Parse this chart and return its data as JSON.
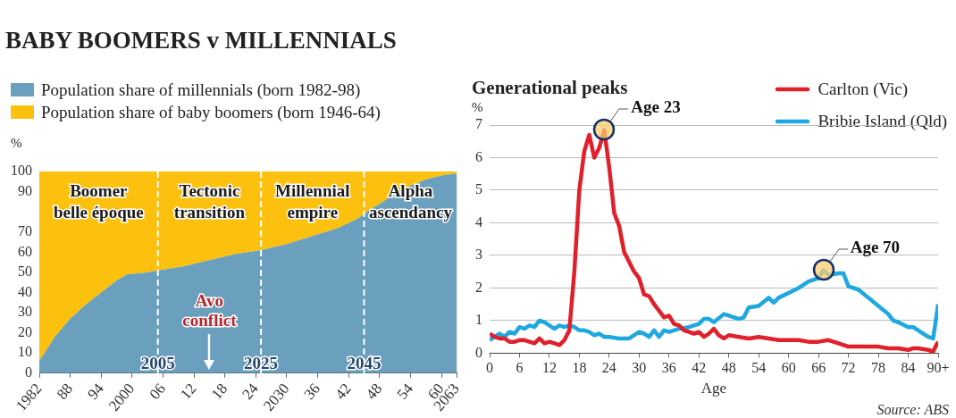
{
  "chart_data": [
    {
      "type": "area",
      "title": "BABY BOOMERS v MILLENNIALS",
      "ylabel": "%",
      "stacked": true,
      "marker": "none",
      "legend": "top left",
      "x": [
        1982,
        1985,
        1988,
        1991,
        1994,
        1997,
        1999,
        2003,
        2005,
        2010,
        2015,
        2020,
        2025,
        2030,
        2035,
        2040,
        2044,
        2046,
        2048,
        2051,
        2054,
        2057,
        2060,
        2063
      ],
      "series": [
        {
          "name": "Population share of millennials (born 1982-98)",
          "color": "#6a9fbd",
          "values": [
            6,
            18,
            27,
            34,
            40,
            46,
            49,
            50,
            51,
            53,
            56,
            59,
            61,
            64,
            68,
            72,
            77,
            81,
            84,
            89,
            93,
            96,
            98,
            99
          ]
        },
        {
          "name": "Population share of baby boomers (born 1946-64)",
          "color": "#fcc10f",
          "values": [
            94,
            82,
            73,
            66,
            60,
            54,
            51,
            50,
            49,
            47,
            44,
            41,
            39,
            36,
            32,
            28,
            23,
            19,
            16,
            11,
            7,
            4,
            2,
            1
          ]
        }
      ],
      "xlim": [
        1982,
        2063
      ],
      "xticks": [
        1982,
        {
          "value": 1988,
          "label": "88"
        },
        {
          "value": 1994,
          "label": "94"
        },
        2000,
        {
          "value": 2006,
          "label": "06"
        },
        {
          "value": 2012,
          "label": "12"
        },
        {
          "value": 2018,
          "label": "18"
        },
        {
          "value": 2024,
          "label": "24"
        },
        2030,
        {
          "value": 2036,
          "label": "36"
        },
        {
          "value": 2042,
          "label": "42"
        },
        {
          "value": 2048,
          "label": "48"
        },
        {
          "value": 2054,
          "label": "54"
        },
        {
          "value": 2060,
          "label": "60"
        },
        2063
      ],
      "ylim": [
        0,
        100
      ],
      "yticks": [
        0,
        10,
        20,
        30,
        40,
        50,
        60,
        70,
        90,
        100
      ],
      "ref_lines": [
        {
          "axis": "x",
          "value": 2005,
          "label": "2005",
          "line_style": "dashed",
          "color": "#ffffff"
        },
        {
          "axis": "x",
          "value": 2025,
          "label": "2025",
          "line_style": "dashed",
          "color": "#ffffff"
        },
        {
          "axis": "x",
          "value": 2045,
          "label": "2045",
          "line_style": "dashed",
          "color": "#ffffff"
        }
      ],
      "annotations": [
        "Boomer belle époque",
        "Tectonic transition",
        "Millennial empire",
        "Alpha ascendancy",
        {
          "text": "Avo conflict",
          "x": 2015,
          "y": 0
        }
      ]
    },
    {
      "type": "line",
      "title": "Generational peaks",
      "xlabel": "Age",
      "ylabel": "%",
      "marker": "none",
      "grid": "y",
      "legend": "top right",
      "line_style": "solid",
      "series": [
        {
          "name": "Carlton (Vic)",
          "color": "#e0202a",
          "x": [
            0,
            1,
            2,
            3,
            4,
            5,
            6,
            7,
            8,
            9,
            10,
            11,
            12,
            13,
            14,
            15,
            16,
            17,
            18,
            19,
            20,
            21,
            22,
            23,
            24,
            25,
            26,
            27,
            28,
            29,
            30,
            31,
            32,
            33,
            34,
            35,
            36,
            37,
            38,
            39,
            40,
            41,
            42,
            43,
            44,
            45,
            46,
            47,
            48,
            50,
            52,
            54,
            56,
            58,
            60,
            62,
            64,
            66,
            68,
            70,
            72,
            74,
            76,
            78,
            80,
            82,
            84,
            85,
            86,
            88,
            89,
            90
          ],
          "values": [
            0.6,
            0.5,
            0.45,
            0.45,
            0.35,
            0.35,
            0.4,
            0.4,
            0.35,
            0.3,
            0.45,
            0.3,
            0.35,
            0.3,
            0.25,
            0.4,
            0.7,
            2.5,
            5.0,
            6.2,
            6.7,
            6.0,
            6.3,
            6.85,
            5.7,
            4.3,
            3.9,
            3.1,
            2.8,
            2.5,
            2.3,
            1.8,
            1.75,
            1.5,
            1.3,
            1.1,
            1.15,
            0.9,
            0.85,
            0.7,
            0.65,
            0.6,
            0.65,
            0.5,
            0.6,
            0.75,
            0.55,
            0.45,
            0.55,
            0.5,
            0.45,
            0.5,
            0.45,
            0.4,
            0.4,
            0.4,
            0.35,
            0.35,
            0.4,
            0.3,
            0.2,
            0.2,
            0.2,
            0.2,
            0.15,
            0.15,
            0.1,
            0.15,
            0.15,
            0.1,
            0.05,
            0.35
          ]
        },
        {
          "name": "Bribie Island (Qld)",
          "color": "#1fa8e0",
          "x": [
            0,
            1,
            2,
            3,
            4,
            5,
            6,
            7,
            8,
            9,
            10,
            11,
            12,
            13,
            14,
            15,
            16,
            17,
            18,
            19,
            20,
            21,
            22,
            23,
            24,
            26,
            28,
            30,
            31,
            32,
            33,
            34,
            35,
            36,
            37,
            38,
            40,
            42,
            43,
            44,
            45,
            47,
            48,
            50,
            51,
            52,
            54,
            56,
            57,
            58,
            60,
            62,
            64,
            66,
            67,
            68,
            70,
            71,
            72,
            74,
            76,
            78,
            80,
            81,
            82,
            84,
            85,
            86,
            88,
            89,
            90
          ],
          "values": [
            0.4,
            0.5,
            0.6,
            0.5,
            0.65,
            0.6,
            0.8,
            0.75,
            0.85,
            0.8,
            1.0,
            0.95,
            0.85,
            0.75,
            0.85,
            0.8,
            0.85,
            0.8,
            0.7,
            0.7,
            0.65,
            0.55,
            0.6,
            0.5,
            0.5,
            0.45,
            0.45,
            0.65,
            0.6,
            0.5,
            0.7,
            0.5,
            0.7,
            0.65,
            0.7,
            0.75,
            0.8,
            0.9,
            1.05,
            1.05,
            0.95,
            1.2,
            1.15,
            1.05,
            1.1,
            1.4,
            1.45,
            1.7,
            1.55,
            1.7,
            1.85,
            2.0,
            2.2,
            2.3,
            2.55,
            2.4,
            2.45,
            2.45,
            2.05,
            1.95,
            1.7,
            1.45,
            1.2,
            1.0,
            0.95,
            0.8,
            0.8,
            0.7,
            0.5,
            0.45,
            1.5
          ]
        }
      ],
      "xlim": [
        0,
        90
      ],
      "xticks": [
        0,
        6,
        12,
        18,
        24,
        30,
        36,
        42,
        48,
        54,
        60,
        66,
        72,
        78,
        84,
        {
          "value": 90,
          "label": "90+"
        }
      ],
      "ylim": [
        0,
        7
      ],
      "yticks": [
        0,
        1,
        2,
        3,
        4,
        5,
        6,
        7
      ],
      "annotations": [
        {
          "text": "Age 23",
          "x": 23,
          "y": 6.85
        },
        {
          "text": "Age 70",
          "x": 67,
          "y": 2.55
        },
        "Source: ABS"
      ]
    }
  ]
}
